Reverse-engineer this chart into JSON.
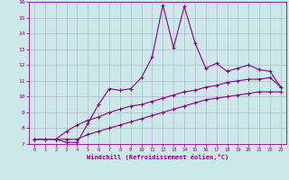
{
  "xlabel": "Windchill (Refroidissement éolien,°C)",
  "background_color": "#cce8e8",
  "line_color": "#880088",
  "grid_color": "#aaaacc",
  "x_values": [
    0,
    1,
    2,
    3,
    4,
    5,
    6,
    7,
    8,
    9,
    10,
    11,
    12,
    13,
    14,
    15,
    16,
    17,
    18,
    19,
    20,
    21,
    22,
    23
  ],
  "line1_y": [
    7.3,
    7.3,
    7.3,
    7.1,
    7.1,
    8.3,
    9.5,
    10.5,
    10.4,
    10.5,
    11.2,
    12.5,
    15.8,
    13.1,
    15.7,
    13.4,
    11.8,
    12.1,
    11.6,
    11.8,
    12.0,
    11.7,
    11.6,
    10.6
  ],
  "line2_y": [
    7.3,
    7.3,
    7.3,
    7.8,
    8.2,
    8.5,
    8.7,
    9.0,
    9.2,
    9.4,
    9.5,
    9.7,
    9.9,
    10.1,
    10.3,
    10.4,
    10.6,
    10.7,
    10.9,
    11.0,
    11.1,
    11.1,
    11.2,
    10.6
  ],
  "line3_y": [
    7.3,
    7.3,
    7.3,
    7.3,
    7.3,
    7.6,
    7.8,
    8.0,
    8.2,
    8.4,
    8.6,
    8.8,
    9.0,
    9.2,
    9.4,
    9.6,
    9.8,
    9.9,
    10.0,
    10.1,
    10.2,
    10.3,
    10.3,
    10.3
  ],
  "ylim": [
    7,
    16
  ],
  "yticks": [
    7,
    8,
    9,
    10,
    11,
    12,
    13,
    14,
    15,
    16
  ],
  "xlim": [
    -0.5,
    23.5
  ],
  "xticks": [
    0,
    1,
    2,
    3,
    4,
    5,
    6,
    7,
    8,
    9,
    10,
    11,
    12,
    13,
    14,
    15,
    16,
    17,
    18,
    19,
    20,
    21,
    22,
    23
  ]
}
